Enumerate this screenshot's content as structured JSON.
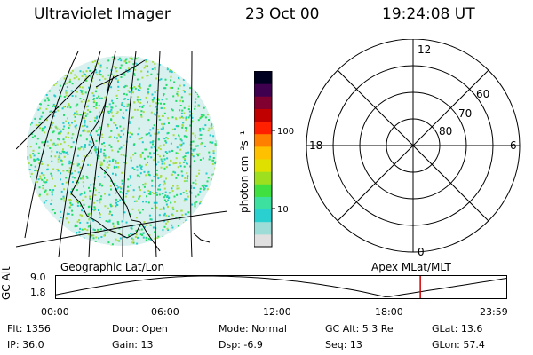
{
  "header": {
    "title": "Ultraviolet Imager",
    "date": "23 Oct 00",
    "time": "19:24:08 UT"
  },
  "imager": {
    "label": "Geographic Lat/Lon",
    "colors": {
      "primary": "#22dd66",
      "secondary": "#22cccc",
      "tertiary": "#aadd44"
    }
  },
  "colorbar": {
    "label": "photon cm⁻²s⁻¹",
    "ticks": [
      "100",
      "10"
    ],
    "colors": [
      "#e0e0e0",
      "#9edcd8",
      "#2ad0d0",
      "#3ee0a0",
      "#40e040",
      "#9ee020",
      "#e0e000",
      "#ffc000",
      "#ff8000",
      "#ff2000",
      "#c00000",
      "#800030",
      "#400050",
      "#000020"
    ]
  },
  "polar": {
    "label": "Apex MLat/MLT",
    "mlt_labels": {
      "top": "12",
      "bottom": "0",
      "left": "18",
      "right": "6"
    },
    "lat_labels": [
      "60",
      "70",
      "80"
    ]
  },
  "orbit": {
    "ylabel": "GC Alt",
    "yticks": [
      "9.0",
      "1.8"
    ],
    "xticks": [
      "00:00",
      "06:00",
      "12:00",
      "18:00",
      "23:59"
    ],
    "marker_hour": 19.4,
    "marker_color": "#cc0000"
  },
  "info": {
    "flt": "Flt: 1356",
    "ip": "IP: 36.0",
    "door": "Door: Open",
    "gain": "Gain: 13",
    "mode": "Mode: Normal",
    "dsp": "Dsp:    -6.9",
    "gcalt": "GC Alt: 5.3 Re",
    "seq": "Seq: 13",
    "glat": "GLat:  13.6",
    "glon": "GLon:  57.4"
  }
}
